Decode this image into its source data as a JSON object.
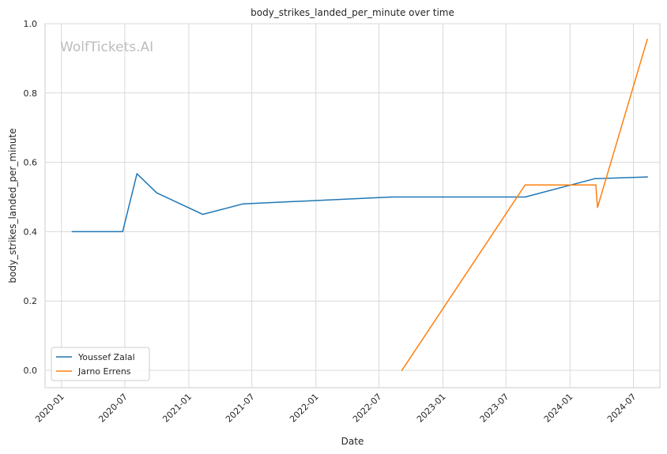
{
  "chart_data": {
    "type": "line",
    "title": "body_strikes_landed_per_minute over time",
    "xlabel": "Date",
    "ylabel": "body_strikes_landed_per_minute",
    "watermark": "WolfTickets.AI",
    "xlim": [
      "2019-11-15",
      "2024-09-15"
    ],
    "ylim": [
      -0.05,
      1.0
    ],
    "x_ticks": [
      "2020-01",
      "2020-07",
      "2021-01",
      "2021-07",
      "2022-01",
      "2022-07",
      "2023-01",
      "2023-07",
      "2024-01",
      "2024-07"
    ],
    "y_ticks": [
      "0.0",
      "0.2",
      "0.4",
      "0.6",
      "0.8",
      "1.0"
    ],
    "grid": true,
    "legend_position": "bottom-left",
    "series": [
      {
        "name": "Youssef Zalal",
        "color": "#1f77b4",
        "points": [
          {
            "x": "2020-02-01",
            "y": 0.4
          },
          {
            "x": "2020-06-25",
            "y": 0.4
          },
          {
            "x": "2020-08-05",
            "y": 0.567
          },
          {
            "x": "2020-10-01",
            "y": 0.512
          },
          {
            "x": "2021-02-10",
            "y": 0.45
          },
          {
            "x": "2021-06-05",
            "y": 0.48
          },
          {
            "x": "2022-08-07",
            "y": 0.5
          },
          {
            "x": "2023-08-25",
            "y": 0.5
          },
          {
            "x": "2024-03-12",
            "y": 0.553
          },
          {
            "x": "2024-08-10",
            "y": 0.558
          }
        ]
      },
      {
        "name": "Jarno Errens",
        "color": "#ff7f0e",
        "points": [
          {
            "x": "2022-09-05",
            "y": 0.0
          },
          {
            "x": "2023-08-25",
            "y": 0.535
          },
          {
            "x": "2024-03-15",
            "y": 0.535
          },
          {
            "x": "2024-03-20",
            "y": 0.47
          },
          {
            "x": "2024-08-10",
            "y": 0.955
          }
        ]
      }
    ]
  }
}
